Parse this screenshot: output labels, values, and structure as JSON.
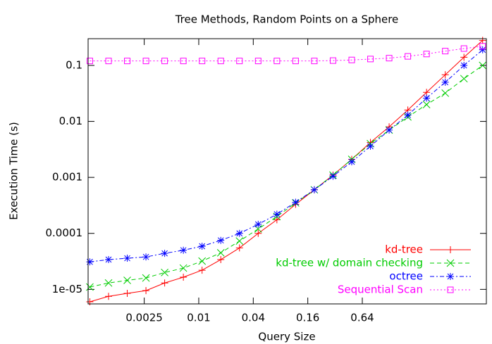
{
  "chart_data": {
    "type": "line",
    "title": "Tree Methods, Random Points on a Sphere",
    "xlabel": "Query Size",
    "ylabel": "Execution Time (s)",
    "xscale": "log",
    "yscale": "log",
    "xlim": [
      0.0006,
      15
    ],
    "ylim": [
      5.5e-06,
      0.3
    ],
    "xticks": [
      0.0025,
      0.01,
      0.04,
      0.16,
      0.64
    ],
    "yticks": [
      {
        "value": 1e-05,
        "label": "1e-05"
      },
      0.0001,
      0.001,
      0.01,
      0.1
    ],
    "legend": "lower right",
    "x": [
      0.000627,
      0.001009,
      0.001623,
      0.002612,
      0.004203,
      0.006763,
      0.01088,
      0.01751,
      0.02817,
      0.04533,
      0.07294,
      0.1174,
      0.1889,
      0.3039,
      0.489,
      0.7868,
      1.266,
      2.037,
      3.278,
      5.274,
      8.486,
      13.65
    ],
    "series": [
      {
        "name": "kd-tree",
        "color": "#ff0000",
        "marker": "plus",
        "values": [
          6e-06,
          7.5e-06,
          8.5e-06,
          9.5e-06,
          1.3e-05,
          1.65e-05,
          2.2e-05,
          3.4e-05,
          5.5e-05,
          0.0001,
          0.000175,
          0.00033,
          0.0006,
          0.0011,
          0.0021,
          0.0042,
          0.008,
          0.016,
          0.033,
          0.068,
          0.14,
          0.28
        ]
      },
      {
        "name": "kd-tree w/ domain checking",
        "color": "#00cc00",
        "marker": "cross",
        "values": [
          1.1e-05,
          1.3e-05,
          1.45e-05,
          1.6e-05,
          2e-05,
          2.4e-05,
          3.2e-05,
          4.5e-05,
          7.3e-05,
          0.00012,
          0.0002,
          0.00035,
          0.0006,
          0.0011,
          0.0021,
          0.004,
          0.007,
          0.012,
          0.02,
          0.032,
          0.058,
          0.1
        ]
      },
      {
        "name": "octree",
        "color": "#0000ff",
        "marker": "star",
        "values": [
          3.1e-05,
          3.4e-05,
          3.6e-05,
          3.8e-05,
          4.4e-05,
          5e-05,
          5.9e-05,
          7.5e-05,
          0.0001,
          0.000145,
          0.00022,
          0.00036,
          0.0006,
          0.00105,
          0.0019,
          0.0036,
          0.007,
          0.013,
          0.026,
          0.05,
          0.1,
          0.19
        ]
      },
      {
        "name": "Sequential Scan",
        "color": "#ff00ff",
        "marker": "square",
        "values": [
          0.12,
          0.12,
          0.12,
          0.12,
          0.12,
          0.12,
          0.12,
          0.12,
          0.12,
          0.12,
          0.12,
          0.12,
          0.12,
          0.122,
          0.125,
          0.13,
          0.135,
          0.145,
          0.16,
          0.18,
          0.2,
          0.22
        ]
      }
    ]
  }
}
